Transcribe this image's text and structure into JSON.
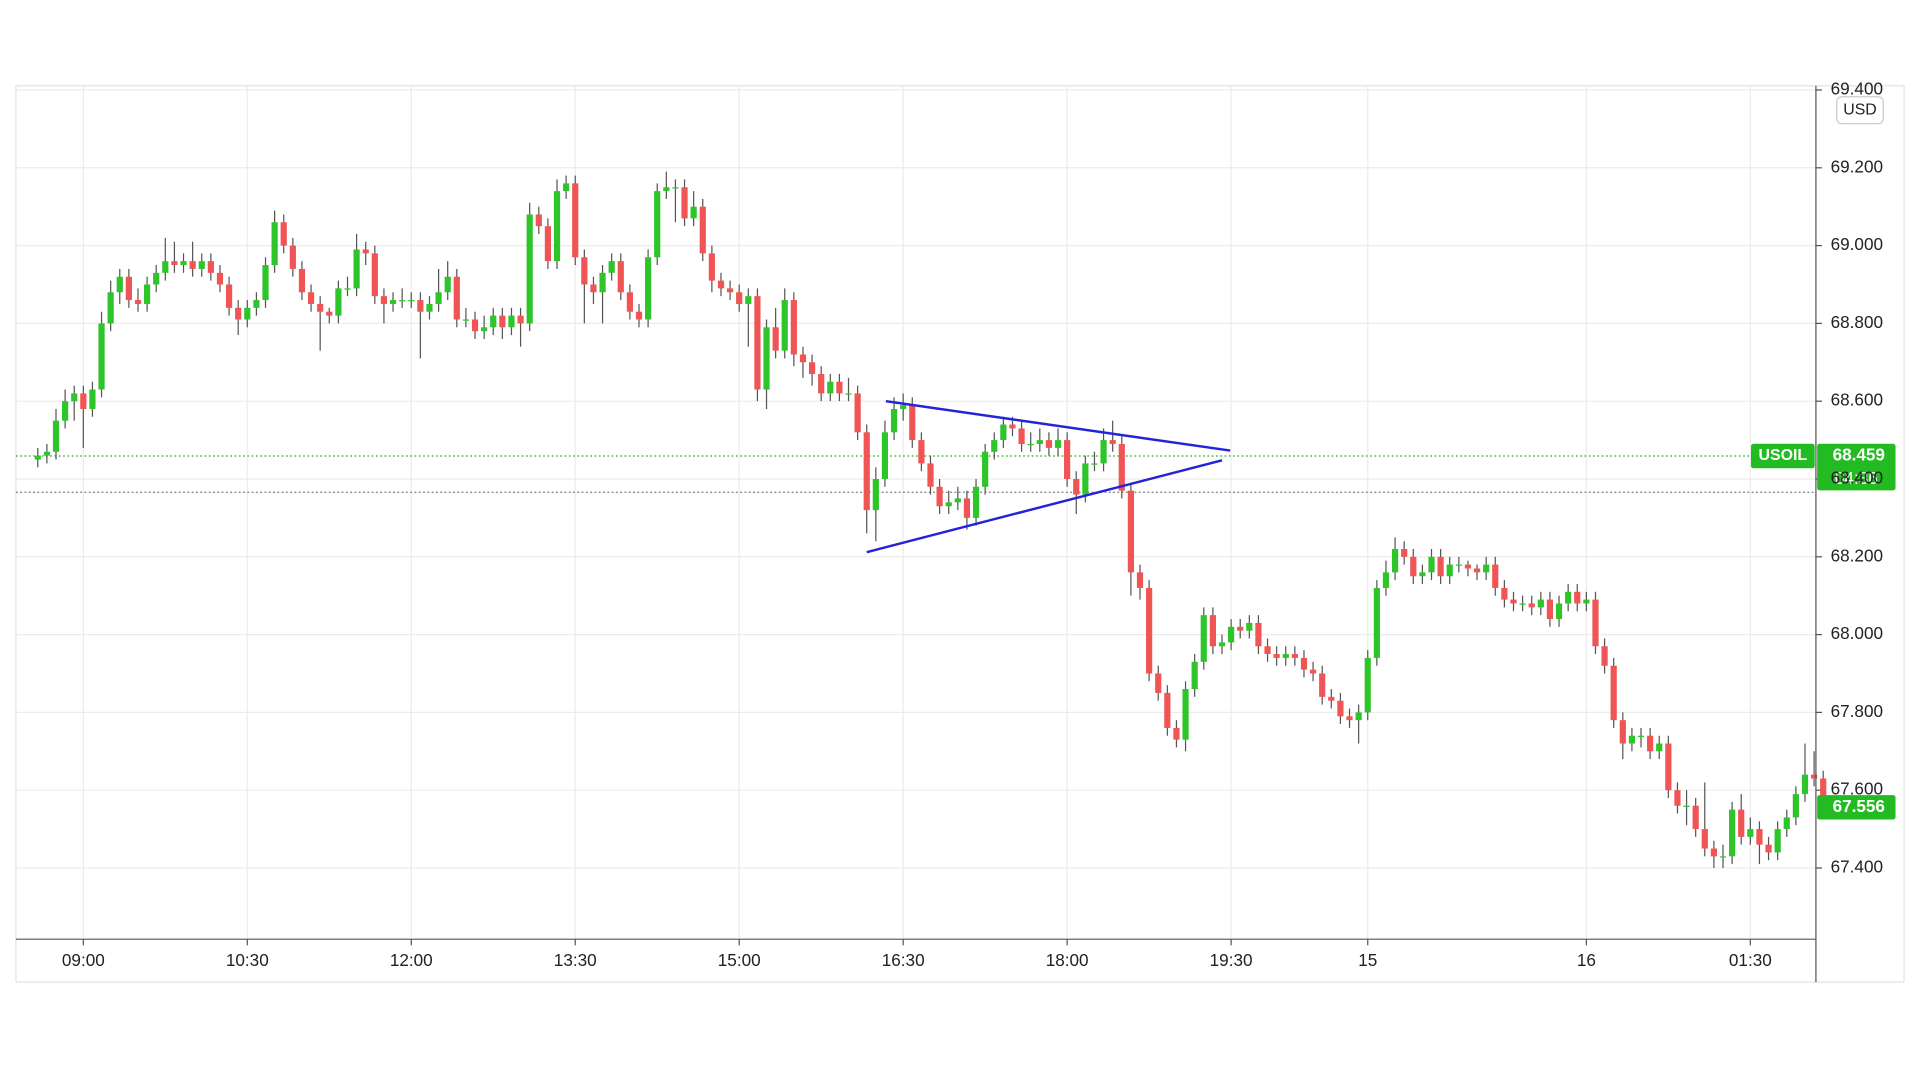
{
  "chart_data": {
    "type": "candlestick",
    "symbol": "USOIL",
    "currency": "USD",
    "up_color": "#2ec52a",
    "down_color": "#f05454",
    "wick_color": "#555555",
    "grid": true,
    "ylim": [
      67.217,
      69.411
    ],
    "yticks": [
      {
        "value": 67.4,
        "label": "67.400"
      },
      {
        "value": 67.6,
        "label": "67.600"
      },
      {
        "value": 67.8,
        "label": "67.800"
      },
      {
        "value": 68.0,
        "label": "68.000"
      },
      {
        "value": 68.2,
        "label": "68.200"
      },
      {
        "value": 68.4,
        "label": "68.400"
      },
      {
        "value": 68.6,
        "label": "68.600"
      },
      {
        "value": 68.8,
        "label": "68.800"
      },
      {
        "value": 69.0,
        "label": "69.000"
      },
      {
        "value": 69.2,
        "label": "69.200"
      },
      {
        "value": 69.4,
        "label": "69.400"
      }
    ],
    "xlim": [
      -2.4,
      195.2
    ],
    "xticks": [
      {
        "value": 5,
        "label": "09:00"
      },
      {
        "value": 23,
        "label": "10:30"
      },
      {
        "value": 41,
        "label": "12:00"
      },
      {
        "value": 59,
        "label": "13:30"
      },
      {
        "value": 77,
        "label": "15:00"
      },
      {
        "value": 95,
        "label": "16:30"
      },
      {
        "value": 113,
        "label": "18:00"
      },
      {
        "value": 131,
        "label": "19:30"
      },
      {
        "value": 146,
        "label": "15"
      },
      {
        "value": 170,
        "label": "16"
      },
      {
        "value": 188,
        "label": "01:30"
      }
    ],
    "candles": [
      [
        68.45,
        68.48,
        68.43,
        68.46
      ],
      [
        68.46,
        68.49,
        68.44,
        68.47
      ],
      [
        68.47,
        68.58,
        68.45,
        68.55
      ],
      [
        68.55,
        68.63,
        68.53,
        68.6
      ],
      [
        68.6,
        68.64,
        68.55,
        68.62
      ],
      [
        68.62,
        68.64,
        68.48,
        68.58
      ],
      [
        68.58,
        68.65,
        68.56,
        68.63
      ],
      [
        68.63,
        68.83,
        68.61,
        68.8
      ],
      [
        68.8,
        68.91,
        68.78,
        68.88
      ],
      [
        68.88,
        68.94,
        68.85,
        68.92
      ],
      [
        68.92,
        68.94,
        68.84,
        68.86
      ],
      [
        68.86,
        68.89,
        68.83,
        68.85
      ],
      [
        68.85,
        68.92,
        68.83,
        68.9
      ],
      [
        68.9,
        68.95,
        68.88,
        68.93
      ],
      [
        68.93,
        69.02,
        68.91,
        68.96
      ],
      [
        68.96,
        69.01,
        68.93,
        68.95
      ],
      [
        68.95,
        68.98,
        68.93,
        68.96
      ],
      [
        68.96,
        69.01,
        68.92,
        68.94
      ],
      [
        68.94,
        68.98,
        68.92,
        68.96
      ],
      [
        68.96,
        68.98,
        68.91,
        68.93
      ],
      [
        68.93,
        68.95,
        68.88,
        68.9
      ],
      [
        68.9,
        68.92,
        68.82,
        68.84
      ],
      [
        68.84,
        68.86,
        68.77,
        68.81
      ],
      [
        68.81,
        68.86,
        68.79,
        68.84
      ],
      [
        68.84,
        68.88,
        68.82,
        68.86
      ],
      [
        68.86,
        68.97,
        68.84,
        68.95
      ],
      [
        68.95,
        69.09,
        68.93,
        69.06
      ],
      [
        69.06,
        69.08,
        68.98,
        69.0
      ],
      [
        69.0,
        69.02,
        68.92,
        68.94
      ],
      [
        68.94,
        68.96,
        68.86,
        68.88
      ],
      [
        68.88,
        68.9,
        68.83,
        68.85
      ],
      [
        68.85,
        68.87,
        68.73,
        68.83
      ],
      [
        68.83,
        68.84,
        68.8,
        68.82
      ],
      [
        68.82,
        68.91,
        68.8,
        68.89
      ],
      [
        68.89,
        68.92,
        68.87,
        68.89
      ],
      [
        68.89,
        69.03,
        68.87,
        68.99
      ],
      [
        68.99,
        69.01,
        68.95,
        68.98
      ],
      [
        68.98,
        69.0,
        68.85,
        68.87
      ],
      [
        68.87,
        68.89,
        68.8,
        68.85
      ],
      [
        68.85,
        68.88,
        68.83,
        68.86
      ],
      [
        68.86,
        68.89,
        68.84,
        68.86
      ],
      [
        68.86,
        68.88,
        68.84,
        68.86
      ],
      [
        68.86,
        68.88,
        68.71,
        68.83
      ],
      [
        68.83,
        68.87,
        68.81,
        68.85
      ],
      [
        68.85,
        68.94,
        68.83,
        68.88
      ],
      [
        68.88,
        68.96,
        68.86,
        68.92
      ],
      [
        68.92,
        68.94,
        68.79,
        68.81
      ],
      [
        68.81,
        68.84,
        68.79,
        68.81
      ],
      [
        68.81,
        68.83,
        68.76,
        68.78
      ],
      [
        68.78,
        68.82,
        68.76,
        68.79
      ],
      [
        68.79,
        68.84,
        68.77,
        68.82
      ],
      [
        68.82,
        68.84,
        68.76,
        68.79
      ],
      [
        68.79,
        68.84,
        68.77,
        68.82
      ],
      [
        68.82,
        68.84,
        68.74,
        68.8
      ],
      [
        68.8,
        69.11,
        68.78,
        69.08
      ],
      [
        69.08,
        69.1,
        69.03,
        69.05
      ],
      [
        69.05,
        69.07,
        68.94,
        68.96
      ],
      [
        68.96,
        69.17,
        68.94,
        69.14
      ],
      [
        69.14,
        69.18,
        69.12,
        69.16
      ],
      [
        69.16,
        69.18,
        68.95,
        68.97
      ],
      [
        68.97,
        68.99,
        68.8,
        68.9
      ],
      [
        68.9,
        68.92,
        68.85,
        68.88
      ],
      [
        68.88,
        68.95,
        68.8,
        68.93
      ],
      [
        68.93,
        68.98,
        68.91,
        68.96
      ],
      [
        68.96,
        68.98,
        68.86,
        68.88
      ],
      [
        68.88,
        68.9,
        68.81,
        68.83
      ],
      [
        68.83,
        68.85,
        68.79,
        68.81
      ],
      [
        68.81,
        68.99,
        68.79,
        68.97
      ],
      [
        68.97,
        69.16,
        68.95,
        69.14
      ],
      [
        69.14,
        69.19,
        69.12,
        69.15
      ],
      [
        69.15,
        69.17,
        69.06,
        69.15
      ],
      [
        69.15,
        69.17,
        69.05,
        69.07
      ],
      [
        69.07,
        69.14,
        69.05,
        69.1
      ],
      [
        69.1,
        69.12,
        68.96,
        68.98
      ],
      [
        68.98,
        69.0,
        68.88,
        68.91
      ],
      [
        68.91,
        68.93,
        68.87,
        68.89
      ],
      [
        68.89,
        68.91,
        68.86,
        68.88
      ],
      [
        68.88,
        68.9,
        68.83,
        68.85
      ],
      [
        68.85,
        68.89,
        68.74,
        68.87
      ],
      [
        68.87,
        68.89,
        68.6,
        68.63
      ],
      [
        68.63,
        68.81,
        68.58,
        68.79
      ],
      [
        68.79,
        68.84,
        68.71,
        68.73
      ],
      [
        68.73,
        68.89,
        68.71,
        68.86
      ],
      [
        68.86,
        68.88,
        68.69,
        68.72
      ],
      [
        68.72,
        68.74,
        68.66,
        68.7
      ],
      [
        68.7,
        68.72,
        68.64,
        68.67
      ],
      [
        68.67,
        68.69,
        68.6,
        68.62
      ],
      [
        68.62,
        68.67,
        68.6,
        68.65
      ],
      [
        68.65,
        68.67,
        68.6,
        68.62
      ],
      [
        68.62,
        68.66,
        68.6,
        68.62
      ],
      [
        68.62,
        68.64,
        68.5,
        68.52
      ],
      [
        68.52,
        68.54,
        68.26,
        68.32
      ],
      [
        68.32,
        68.43,
        68.24,
        68.4
      ],
      [
        68.4,
        68.55,
        68.38,
        68.52
      ],
      [
        68.52,
        68.61,
        68.5,
        68.58
      ],
      [
        68.58,
        68.62,
        68.55,
        68.59
      ],
      [
        68.59,
        68.61,
        68.48,
        68.5
      ],
      [
        68.5,
        68.52,
        68.42,
        68.44
      ],
      [
        68.44,
        68.46,
        68.36,
        68.38
      ],
      [
        68.38,
        68.4,
        68.31,
        68.33
      ],
      [
        68.33,
        68.37,
        68.31,
        68.34
      ],
      [
        68.34,
        68.38,
        68.32,
        68.35
      ],
      [
        68.35,
        68.37,
        68.27,
        68.3
      ],
      [
        68.3,
        68.4,
        68.28,
        68.38
      ],
      [
        68.38,
        68.49,
        68.36,
        68.47
      ],
      [
        68.47,
        68.52,
        68.45,
        68.5
      ],
      [
        68.5,
        68.56,
        68.48,
        68.54
      ],
      [
        68.54,
        68.56,
        68.51,
        68.53
      ],
      [
        68.53,
        68.55,
        68.47,
        68.49
      ],
      [
        68.49,
        68.52,
        68.47,
        68.49
      ],
      [
        68.49,
        68.53,
        68.47,
        68.5
      ],
      [
        68.5,
        68.52,
        68.46,
        68.48
      ],
      [
        68.48,
        68.53,
        68.46,
        68.5
      ],
      [
        68.5,
        68.52,
        68.38,
        68.4
      ],
      [
        68.4,
        68.42,
        68.31,
        68.36
      ],
      [
        68.36,
        68.46,
        68.34,
        68.44
      ],
      [
        68.44,
        68.47,
        68.42,
        68.44
      ],
      [
        68.44,
        68.53,
        68.42,
        68.5
      ],
      [
        68.5,
        68.55,
        68.47,
        68.49
      ],
      [
        68.49,
        68.51,
        68.35,
        68.37
      ],
      [
        68.37,
        68.39,
        68.1,
        68.16
      ],
      [
        68.16,
        68.18,
        68.09,
        68.12
      ],
      [
        68.12,
        68.14,
        67.88,
        67.9
      ],
      [
        67.9,
        67.92,
        67.83,
        67.85
      ],
      [
        67.85,
        67.87,
        67.74,
        67.76
      ],
      [
        67.76,
        67.78,
        67.71,
        67.73
      ],
      [
        67.73,
        67.88,
        67.7,
        67.86
      ],
      [
        67.86,
        67.95,
        67.84,
        67.93
      ],
      [
        67.93,
        68.07,
        67.91,
        68.05
      ],
      [
        68.05,
        68.07,
        67.95,
        67.97
      ],
      [
        67.97,
        68.0,
        67.95,
        67.98
      ],
      [
        67.98,
        68.04,
        67.96,
        68.02
      ],
      [
        68.02,
        68.04,
        67.99,
        68.01
      ],
      [
        68.01,
        68.05,
        67.99,
        68.03
      ],
      [
        68.03,
        68.05,
        67.95,
        67.97
      ],
      [
        67.97,
        67.99,
        67.93,
        67.95
      ],
      [
        67.95,
        67.97,
        67.92,
        67.94
      ],
      [
        67.94,
        67.97,
        67.92,
        67.95
      ],
      [
        67.95,
        67.97,
        67.92,
        67.94
      ],
      [
        67.94,
        67.96,
        67.89,
        67.91
      ],
      [
        67.91,
        67.93,
        67.88,
        67.9
      ],
      [
        67.9,
        67.92,
        67.82,
        67.84
      ],
      [
        67.84,
        67.86,
        67.81,
        67.83
      ],
      [
        67.83,
        67.85,
        67.77,
        67.79
      ],
      [
        67.79,
        67.81,
        67.76,
        67.78
      ],
      [
        67.78,
        67.82,
        67.72,
        67.8
      ],
      [
        67.8,
        67.96,
        67.78,
        67.94
      ],
      [
        67.94,
        68.14,
        67.92,
        68.12
      ],
      [
        68.12,
        68.19,
        68.1,
        68.16
      ],
      [
        68.16,
        68.25,
        68.14,
        68.22
      ],
      [
        68.22,
        68.24,
        68.18,
        68.2
      ],
      [
        68.2,
        68.22,
        68.13,
        68.15
      ],
      [
        68.15,
        68.18,
        68.13,
        68.16
      ],
      [
        68.16,
        68.22,
        68.14,
        68.2
      ],
      [
        68.2,
        68.22,
        68.13,
        68.15
      ],
      [
        68.15,
        68.2,
        68.13,
        68.18
      ],
      [
        68.18,
        68.2,
        68.16,
        68.18
      ],
      [
        68.18,
        68.19,
        68.15,
        68.17
      ],
      [
        68.17,
        68.18,
        68.14,
        68.16
      ],
      [
        68.16,
        68.2,
        68.14,
        68.18
      ],
      [
        68.18,
        68.2,
        68.1,
        68.12
      ],
      [
        68.12,
        68.14,
        68.07,
        68.09
      ],
      [
        68.09,
        68.11,
        68.06,
        68.08
      ],
      [
        68.08,
        68.1,
        68.06,
        68.08
      ],
      [
        68.08,
        68.1,
        68.05,
        68.07
      ],
      [
        68.07,
        68.11,
        68.05,
        68.09
      ],
      [
        68.09,
        68.11,
        68.02,
        68.04
      ],
      [
        68.04,
        68.1,
        68.02,
        68.08
      ],
      [
        68.08,
        68.13,
        68.06,
        68.11
      ],
      [
        68.11,
        68.13,
        68.06,
        68.08
      ],
      [
        68.08,
        68.11,
        68.06,
        68.09
      ],
      [
        68.09,
        68.11,
        67.95,
        67.97
      ],
      [
        67.97,
        67.99,
        67.9,
        67.92
      ],
      [
        67.92,
        67.94,
        67.76,
        67.78
      ],
      [
        67.78,
        67.8,
        67.68,
        67.72
      ],
      [
        67.72,
        67.76,
        67.7,
        67.74
      ],
      [
        67.74,
        67.76,
        67.71,
        67.74
      ],
      [
        67.74,
        67.76,
        67.68,
        67.7
      ],
      [
        67.7,
        67.74,
        67.68,
        67.72
      ],
      [
        67.72,
        67.74,
        67.58,
        67.6
      ],
      [
        67.6,
        67.62,
        67.54,
        67.56
      ],
      [
        67.56,
        67.6,
        67.51,
        67.56
      ],
      [
        67.56,
        67.58,
        67.48,
        67.5
      ],
      [
        67.5,
        67.62,
        67.43,
        67.45
      ],
      [
        67.45,
        67.47,
        67.4,
        67.43
      ],
      [
        67.43,
        67.46,
        67.4,
        67.43
      ],
      [
        67.43,
        67.57,
        67.41,
        67.55
      ],
      [
        67.55,
        67.59,
        67.46,
        67.48
      ],
      [
        67.48,
        67.53,
        67.46,
        67.5
      ],
      [
        67.5,
        67.52,
        67.41,
        67.46
      ],
      [
        67.46,
        67.48,
        67.42,
        67.44
      ],
      [
        67.44,
        67.52,
        67.42,
        67.5
      ],
      [
        67.5,
        67.55,
        67.48,
        67.53
      ],
      [
        67.53,
        67.61,
        67.51,
        67.59
      ],
      [
        67.59,
        67.72,
        67.57,
        67.64
      ],
      [
        67.64,
        67.7,
        67.61,
        67.63
      ],
      [
        67.63,
        67.65,
        67.53,
        67.56
      ]
    ],
    "trendlines": [
      {
        "color": "#2323d8",
        "x": [
          93.1,
          130.9
        ],
        "y": [
          68.6,
          68.473
        ]
      },
      {
        "color": "#2323d8",
        "x": [
          91.0,
          130.0
        ],
        "y": [
          68.212,
          68.448
        ]
      }
    ],
    "price_tag": {
      "value": 68.459,
      "countdown": "04:36",
      "color": "#22bb22"
    },
    "last_price": {
      "value": 67.556,
      "color": "#22bb22"
    },
    "reference_line": {
      "value": 68.366,
      "color": "#777777"
    }
  }
}
